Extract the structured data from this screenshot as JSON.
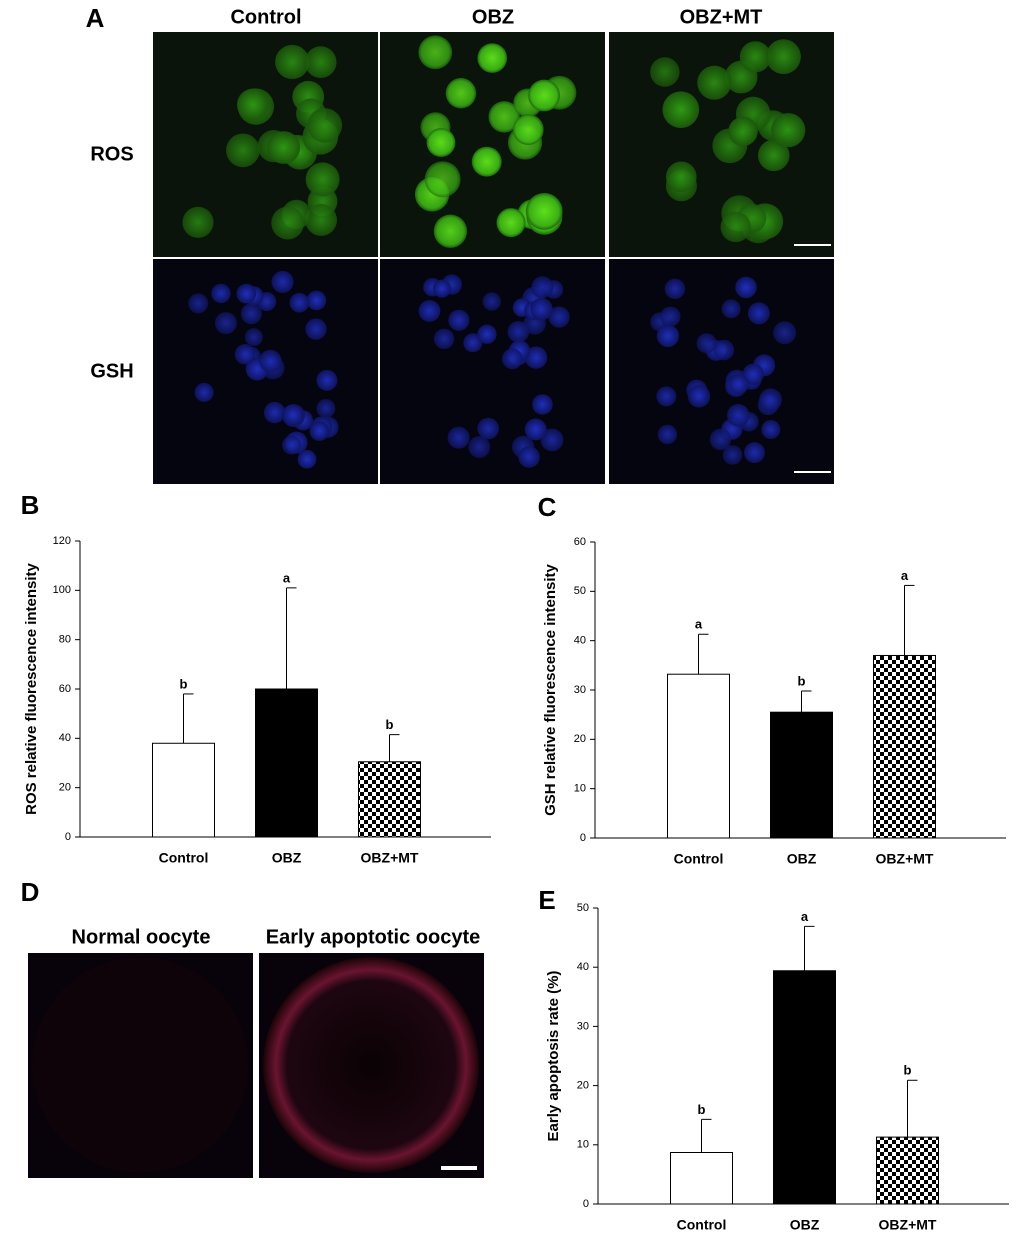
{
  "panel_labels": [
    "A",
    "B",
    "C",
    "D",
    "E"
  ],
  "microscopy": {
    "columns": [
      "Control",
      "OBZ",
      "OBZ+MT"
    ],
    "rows": [
      "ROS",
      "GSH"
    ]
  },
  "apoptosis_images": [
    "Normal oocyte",
    "Early apoptotic oocyte"
  ],
  "chart_data": [
    {
      "type": "bar",
      "ylabel": "ROS relative fluorescence intensity",
      "categories": [
        "Control",
        "OBZ",
        "OBZ+MT"
      ],
      "values": [
        38,
        60,
        30.5
      ],
      "errors": [
        20,
        41,
        11
      ],
      "annotations": [
        "b",
        "a",
        "b"
      ],
      "styles": [
        "open",
        "solid",
        "checkered"
      ],
      "ylim": [
        0,
        120
      ],
      "yticks": [
        0,
        20,
        40,
        60,
        80,
        100,
        120
      ]
    },
    {
      "type": "bar",
      "ylabel": "GSH relative fluorescence intensity",
      "categories": [
        "Control",
        "OBZ",
        "OBZ+MT"
      ],
      "values": [
        33.2,
        25.5,
        37
      ],
      "errors": [
        8.1,
        4.3,
        14.2
      ],
      "annotations": [
        "a",
        "b",
        "a"
      ],
      "styles": [
        "open",
        "solid",
        "checkered"
      ],
      "ylim": [
        0,
        60
      ],
      "yticks": [
        0,
        10,
        20,
        30,
        40,
        50,
        60
      ]
    },
    {
      "type": "bar",
      "ylabel": "Early apoptosis rate (%)",
      "categories": [
        "Control",
        "OBZ",
        "OBZ+MT"
      ],
      "values": [
        8.7,
        39.4,
        11.3
      ],
      "errors": [
        5.6,
        7.5,
        9.6
      ],
      "annotations": [
        "b",
        "a",
        "b"
      ],
      "styles": [
        "open",
        "solid",
        "checkered"
      ],
      "ylim": [
        0,
        50
      ],
      "yticks": [
        0,
        10,
        20,
        30,
        40,
        50
      ]
    }
  ]
}
